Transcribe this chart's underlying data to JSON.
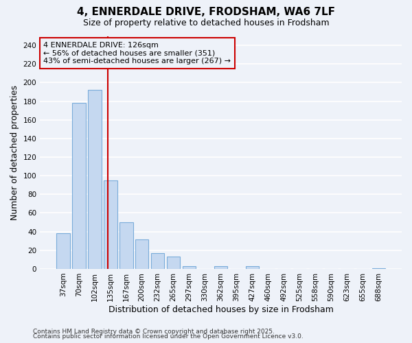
{
  "title": "4, ENNERDALE DRIVE, FRODSHAM, WA6 7LF",
  "subtitle": "Size of property relative to detached houses in Frodsham",
  "xlabel": "Distribution of detached houses by size in Frodsham",
  "ylabel": "Number of detached properties",
  "categories": [
    "37sqm",
    "70sqm",
    "102sqm",
    "135sqm",
    "167sqm",
    "200sqm",
    "232sqm",
    "265sqm",
    "297sqm",
    "330sqm",
    "362sqm",
    "395sqm",
    "427sqm",
    "460sqm",
    "492sqm",
    "525sqm",
    "558sqm",
    "590sqm",
    "623sqm",
    "655sqm",
    "688sqm"
  ],
  "values": [
    38,
    178,
    192,
    95,
    50,
    32,
    17,
    13,
    3,
    0,
    3,
    0,
    3,
    0,
    0,
    0,
    0,
    0,
    0,
    0,
    1
  ],
  "bar_color": "#c5d8f0",
  "bar_edgecolor": "#7aacda",
  "background_color": "#eef2f9",
  "grid_color": "#ffffff",
  "ylim": [
    0,
    250
  ],
  "yticks": [
    0,
    20,
    40,
    60,
    80,
    100,
    120,
    140,
    160,
    180,
    200,
    220,
    240
  ],
  "property_line_color": "#cc0000",
  "annotation_line1": "4 ENNERDALE DRIVE: 126sqm",
  "annotation_line2": "← 56% of detached houses are smaller (351)",
  "annotation_line3": "43% of semi-detached houses are larger (267) →",
  "annotation_box_color": "#cc0000",
  "footnote_line1": "Contains HM Land Registry data © Crown copyright and database right 2025.",
  "footnote_line2": "Contains public sector information licensed under the Open Government Licence v3.0.",
  "title_fontsize": 11,
  "subtitle_fontsize": 9,
  "tick_fontsize": 7.5,
  "ylabel_fontsize": 9,
  "xlabel_fontsize": 9,
  "annotation_fontsize": 8,
  "footnote_fontsize": 6.5,
  "line_x_index": 2.85
}
